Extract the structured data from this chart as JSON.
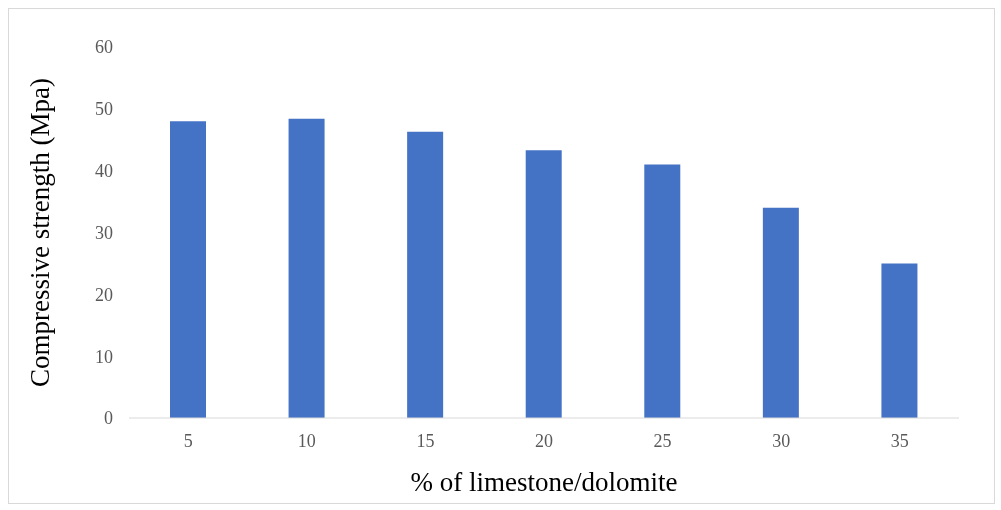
{
  "chart_data": {
    "type": "bar",
    "xlabel": "% of limestone/dolomite",
    "ylabel": "Compressive strength (Mpa)",
    "categories": [
      "5",
      "10",
      "15",
      "20",
      "25",
      "30",
      "35"
    ],
    "values": [
      48,
      48.4,
      46.3,
      43.3,
      41,
      34,
      25
    ],
    "color": "#4472c4",
    "ylim": [
      0,
      60
    ],
    "yticks": [
      0,
      10,
      20,
      30,
      40,
      50,
      60
    ],
    "grid": false,
    "legend": false
  }
}
